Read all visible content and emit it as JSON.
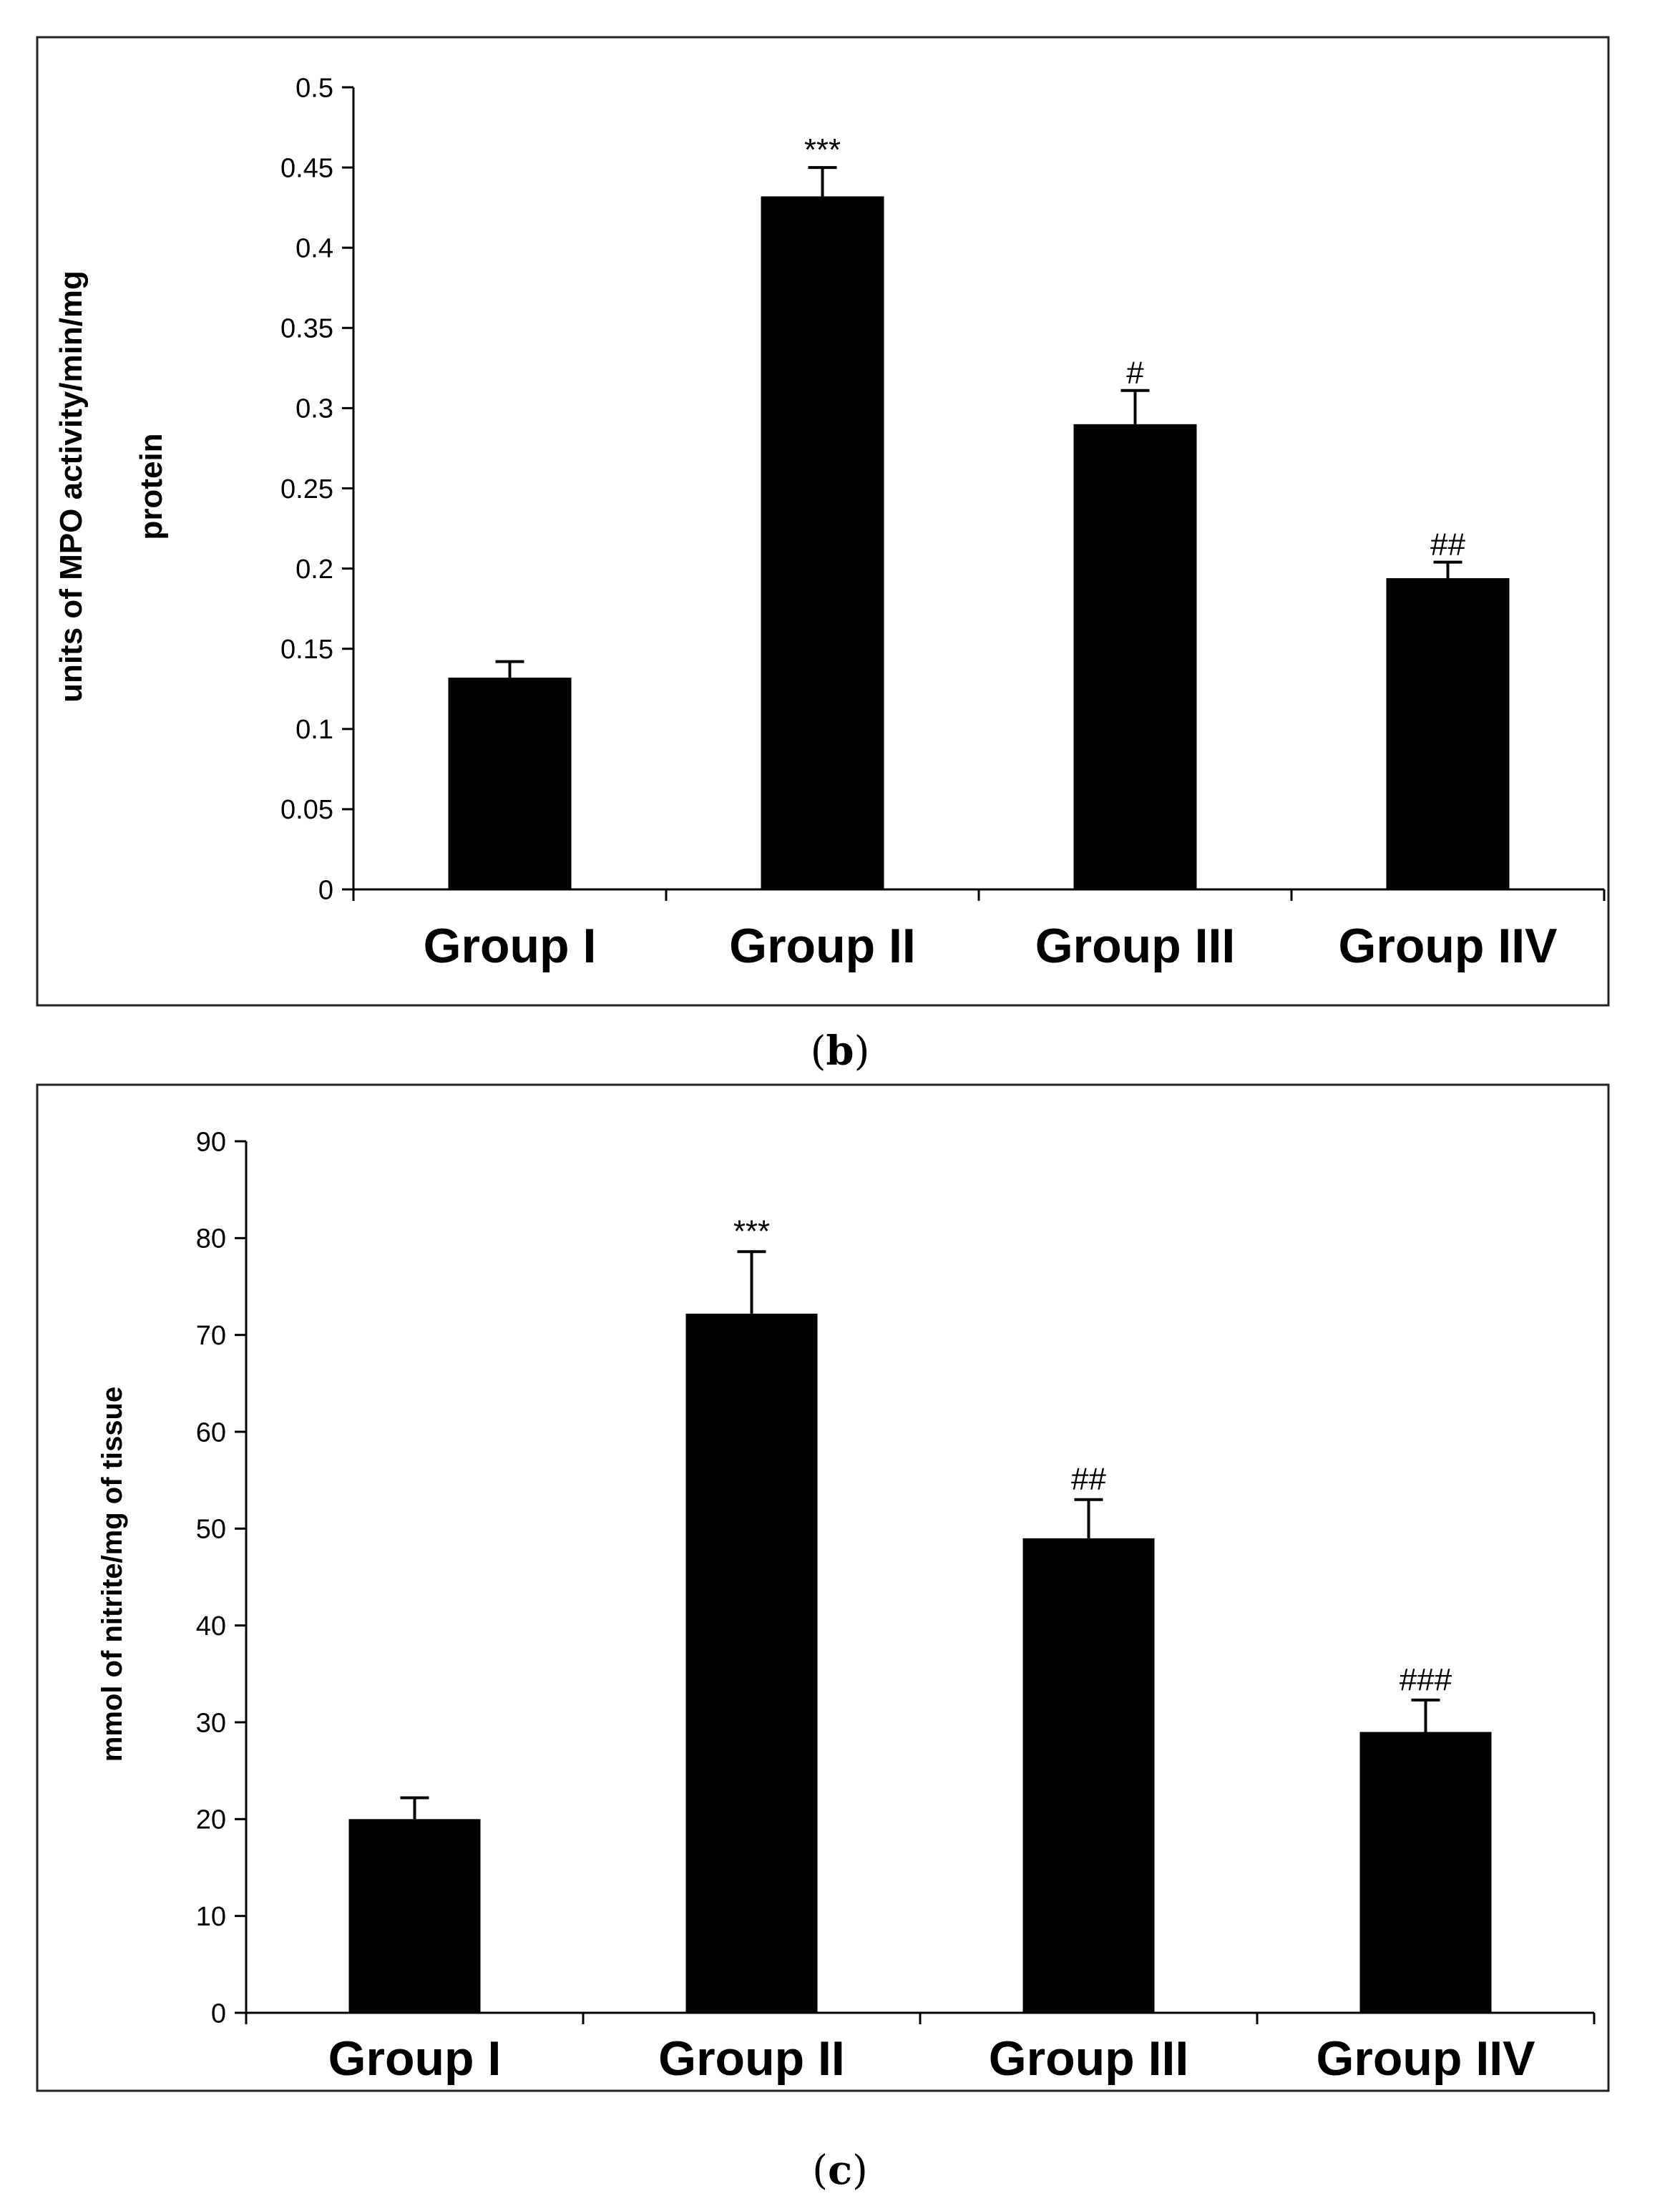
{
  "panels": [
    {
      "caption_open": "(",
      "caption_letter": "b",
      "caption_close": ")",
      "chart_data": {
        "type": "bar",
        "title": "",
        "xlabel": "",
        "ylabel_lines": [
          "units of MPO activity/min/mg",
          "protein"
        ],
        "categories": [
          "Group I",
          "Group II",
          "Group III",
          "Group IIV"
        ],
        "values": [
          0.132,
          0.432,
          0.29,
          0.194
        ],
        "errors": [
          0.01,
          0.018,
          0.021,
          0.01
        ],
        "annotations": [
          "",
          "***",
          "#",
          "##"
        ],
        "ylim": [
          0,
          0.5
        ],
        "yticks": [
          0,
          0.05,
          0.1,
          0.15,
          0.2,
          0.25,
          0.3,
          0.35,
          0.4,
          0.45,
          0.5
        ],
        "ytick_labels": [
          "0",
          "0.05",
          "0.1",
          "0.15",
          "0.2",
          "0.25",
          "0.3",
          "0.35",
          "0.4",
          "0.45",
          "0.5"
        ],
        "bar_color": "#000000",
        "grid": false
      }
    },
    {
      "caption_open": "(",
      "caption_letter": "c",
      "caption_close": ")",
      "chart_data": {
        "type": "bar",
        "title": "",
        "xlabel": "",
        "ylabel_lines": [
          "mmol of nitrite/mg of tissue"
        ],
        "categories": [
          "Group I",
          "Group II",
          "Group III",
          "Group IIV"
        ],
        "values": [
          20,
          72.2,
          49,
          29
        ],
        "errors": [
          2.2,
          6.4,
          4,
          3.3
        ],
        "annotations": [
          "",
          "***",
          "##",
          "###"
        ],
        "ylim": [
          0,
          90
        ],
        "yticks": [
          0,
          10,
          20,
          30,
          40,
          50,
          60,
          70,
          80,
          90
        ],
        "ytick_labels": [
          "0",
          "10",
          "20",
          "30",
          "40",
          "50",
          "60",
          "70",
          "80",
          "90"
        ],
        "bar_color": "#000000",
        "grid": false
      }
    }
  ]
}
